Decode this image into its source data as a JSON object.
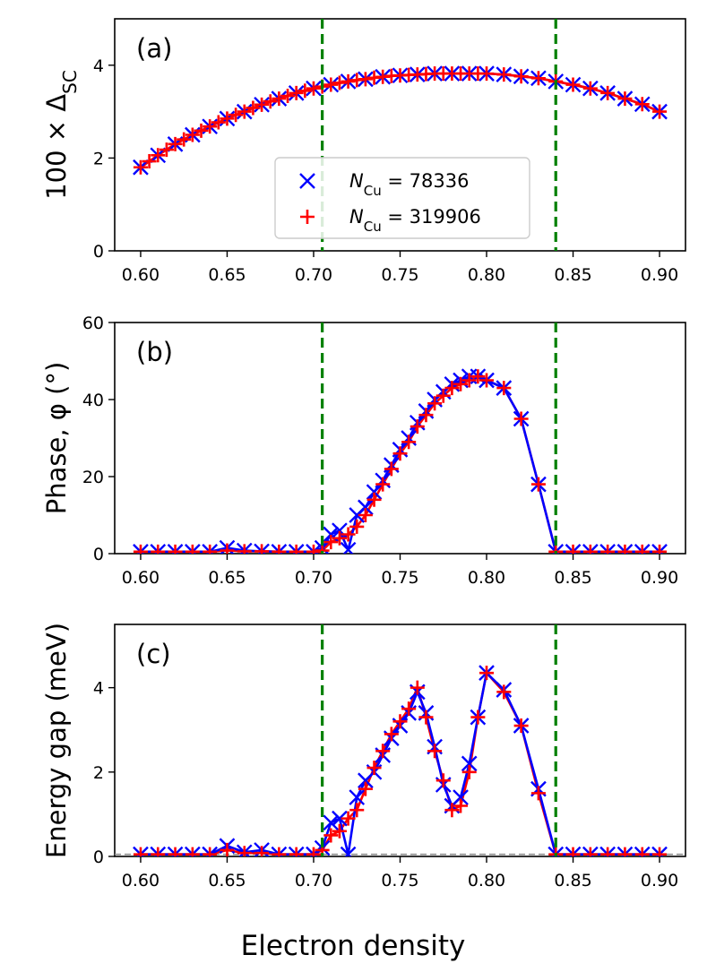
{
  "figure": {
    "xlabel": "Electron density",
    "colors": {
      "blue": "#0000ff",
      "red": "#ff0000",
      "green": "#008000",
      "gray": "#888888"
    }
  },
  "chart_data": [
    {
      "type": "line",
      "panel_label": "(a)",
      "ylabel_main": "100 × Δ",
      "ylabel_sub": "SC",
      "xlim": [
        0.585,
        0.915
      ],
      "ylim": [
        0,
        5
      ],
      "xticks": [
        "0.60",
        "0.65",
        "0.70",
        "0.75",
        "0.80",
        "0.85",
        "0.90"
      ],
      "yticks": [
        "0",
        "2",
        "4"
      ],
      "vlines": [
        0.705,
        0.84
      ],
      "legend": {
        "position": "center-bottom",
        "entries": [
          {
            "sym": "N",
            "sub": "Cu",
            "value": " = 78336"
          },
          {
            "sym": "N",
            "sub": "Cu",
            "value": " = 319906"
          }
        ]
      },
      "series": [
        {
          "name": "N_Cu = 78336",
          "marker": "x",
          "color": "#0000ff",
          "x": [
            0.6,
            0.61,
            0.62,
            0.63,
            0.64,
            0.65,
            0.66,
            0.67,
            0.68,
            0.69,
            0.7,
            0.71,
            0.72,
            0.73,
            0.74,
            0.75,
            0.76,
            0.77,
            0.78,
            0.79,
            0.8,
            0.81,
            0.82,
            0.83,
            0.84,
            0.85,
            0.86,
            0.87,
            0.88,
            0.89,
            0.9
          ],
          "y": [
            1.8,
            2.06,
            2.3,
            2.5,
            2.68,
            2.85,
            3.0,
            3.15,
            3.28,
            3.4,
            3.5,
            3.58,
            3.65,
            3.7,
            3.75,
            3.78,
            3.8,
            3.82,
            3.82,
            3.82,
            3.82,
            3.8,
            3.76,
            3.72,
            3.65,
            3.58,
            3.5,
            3.4,
            3.28,
            3.16,
            3.0
          ]
        },
        {
          "name": "N_Cu = 319906",
          "marker": "+",
          "color": "#ff0000",
          "x": [
            0.6,
            0.605,
            0.61,
            0.615,
            0.62,
            0.625,
            0.63,
            0.635,
            0.64,
            0.645,
            0.65,
            0.655,
            0.66,
            0.665,
            0.67,
            0.675,
            0.68,
            0.685,
            0.69,
            0.695,
            0.7,
            0.705,
            0.71,
            0.715,
            0.72,
            0.725,
            0.73,
            0.735,
            0.74,
            0.745,
            0.75,
            0.755,
            0.76,
            0.765,
            0.77,
            0.775,
            0.78,
            0.785,
            0.79,
            0.795,
            0.8,
            0.81,
            0.82,
            0.83,
            0.84,
            0.85,
            0.86,
            0.87,
            0.88,
            0.89,
            0.9
          ],
          "y": [
            1.8,
            1.93,
            2.06,
            2.18,
            2.3,
            2.4,
            2.5,
            2.59,
            2.68,
            2.77,
            2.85,
            2.93,
            3.0,
            3.08,
            3.15,
            3.22,
            3.28,
            3.34,
            3.4,
            3.45,
            3.5,
            3.54,
            3.58,
            3.62,
            3.65,
            3.68,
            3.7,
            3.73,
            3.75,
            3.77,
            3.78,
            3.79,
            3.8,
            3.81,
            3.82,
            3.82,
            3.82,
            3.82,
            3.82,
            3.82,
            3.82,
            3.8,
            3.76,
            3.72,
            3.65,
            3.58,
            3.5,
            3.4,
            3.28,
            3.16,
            3.0
          ]
        }
      ]
    },
    {
      "type": "line",
      "panel_label": "(b)",
      "ylabel_main": "Phase, φ (°)",
      "xlim": [
        0.585,
        0.915
      ],
      "ylim": [
        0,
        60
      ],
      "xticks": [
        "0.60",
        "0.65",
        "0.70",
        "0.75",
        "0.80",
        "0.85",
        "0.90"
      ],
      "yticks": [
        "0",
        "20",
        "40",
        "60"
      ],
      "vlines": [
        0.705,
        0.84
      ],
      "series": [
        {
          "name": "N_Cu = 78336",
          "marker": "x",
          "color": "#0000ff",
          "x": [
            0.6,
            0.61,
            0.62,
            0.63,
            0.64,
            0.65,
            0.66,
            0.67,
            0.68,
            0.69,
            0.7,
            0.705,
            0.71,
            0.715,
            0.72,
            0.725,
            0.73,
            0.735,
            0.74,
            0.745,
            0.75,
            0.755,
            0.76,
            0.765,
            0.77,
            0.775,
            0.78,
            0.785,
            0.79,
            0.795,
            0.8,
            0.81,
            0.82,
            0.83,
            0.84,
            0.85,
            0.86,
            0.87,
            0.88,
            0.89,
            0.9
          ],
          "y": [
            0.5,
            0.5,
            0.5,
            0.5,
            0.5,
            1.5,
            0.8,
            0.6,
            0.5,
            0.5,
            0.5,
            1.5,
            5,
            6,
            1,
            10,
            12,
            16,
            19,
            23,
            27,
            30,
            34,
            37,
            40,
            42,
            44,
            45,
            46,
            46,
            45,
            43,
            35,
            18,
            0.5,
            0.5,
            0.5,
            0.5,
            0.5,
            0.5,
            0.5
          ]
        },
        {
          "name": "N_Cu = 319906",
          "marker": "+",
          "color": "#ff0000",
          "x": [
            0.6,
            0.61,
            0.62,
            0.63,
            0.64,
            0.65,
            0.66,
            0.67,
            0.68,
            0.69,
            0.7,
            0.705,
            0.71,
            0.715,
            0.72,
            0.725,
            0.73,
            0.735,
            0.74,
            0.745,
            0.75,
            0.755,
            0.76,
            0.765,
            0.77,
            0.775,
            0.78,
            0.785,
            0.79,
            0.795,
            0.8,
            0.81,
            0.82,
            0.83,
            0.84,
            0.85,
            0.86,
            0.87,
            0.88,
            0.89,
            0.9
          ],
          "y": [
            0.5,
            0.5,
            0.5,
            0.5,
            0.5,
            0.8,
            0.6,
            0.6,
            0.5,
            0.5,
            0.5,
            0.8,
            3,
            4,
            5,
            7,
            10,
            14,
            18,
            22,
            26,
            29,
            33,
            36,
            39,
            41,
            43,
            44,
            45,
            46,
            45,
            43,
            35,
            18,
            0.5,
            0.5,
            0.5,
            0.5,
            0.5,
            0.5,
            0.5
          ]
        }
      ]
    },
    {
      "type": "line",
      "panel_label": "(c)",
      "ylabel_main": "Energy gap (meV)",
      "xlim": [
        0.585,
        0.915
      ],
      "ylim": [
        0,
        5.5
      ],
      "xticks": [
        "0.60",
        "0.65",
        "0.70",
        "0.75",
        "0.80",
        "0.85",
        "0.90"
      ],
      "yticks": [
        "0",
        "2",
        "4"
      ],
      "vlines": [
        0.705,
        0.84
      ],
      "hline": 0.05,
      "series": [
        {
          "name": "N_Cu = 78336",
          "marker": "x",
          "color": "#0000ff",
          "x": [
            0.6,
            0.61,
            0.62,
            0.63,
            0.64,
            0.65,
            0.66,
            0.67,
            0.68,
            0.69,
            0.7,
            0.705,
            0.71,
            0.715,
            0.72,
            0.725,
            0.73,
            0.735,
            0.74,
            0.745,
            0.75,
            0.755,
            0.76,
            0.765,
            0.77,
            0.775,
            0.78,
            0.785,
            0.79,
            0.795,
            0.8,
            0.81,
            0.82,
            0.83,
            0.84,
            0.85,
            0.86,
            0.87,
            0.88,
            0.89,
            0.9
          ],
          "y": [
            0.05,
            0.05,
            0.05,
            0.05,
            0.05,
            0.25,
            0.1,
            0.15,
            0.05,
            0.05,
            0.05,
            0.2,
            0.8,
            0.9,
            0.05,
            1.4,
            1.8,
            2.0,
            2.4,
            2.8,
            3.1,
            3.4,
            3.9,
            3.4,
            2.6,
            1.7,
            1.2,
            1.4,
            2.2,
            3.3,
            4.35,
            3.95,
            3.1,
            1.6,
            0.05,
            0.05,
            0.05,
            0.05,
            0.05,
            0.05,
            0.05
          ]
        },
        {
          "name": "N_Cu = 319906",
          "marker": "+",
          "color": "#ff0000",
          "x": [
            0.6,
            0.61,
            0.62,
            0.63,
            0.64,
            0.65,
            0.66,
            0.67,
            0.68,
            0.69,
            0.7,
            0.705,
            0.71,
            0.715,
            0.72,
            0.725,
            0.73,
            0.735,
            0.74,
            0.745,
            0.75,
            0.755,
            0.76,
            0.765,
            0.77,
            0.775,
            0.78,
            0.785,
            0.79,
            0.795,
            0.8,
            0.81,
            0.82,
            0.83,
            0.84,
            0.85,
            0.86,
            0.87,
            0.88,
            0.89,
            0.9
          ],
          "y": [
            0.05,
            0.05,
            0.05,
            0.05,
            0.05,
            0.15,
            0.08,
            0.08,
            0.05,
            0.05,
            0.05,
            0.15,
            0.5,
            0.6,
            0.9,
            1.1,
            1.6,
            2.1,
            2.5,
            2.9,
            3.2,
            3.5,
            4.0,
            3.3,
            2.5,
            1.8,
            1.1,
            1.2,
            2.0,
            3.3,
            4.35,
            3.9,
            3.1,
            1.5,
            0.05,
            0.05,
            0.05,
            0.05,
            0.05,
            0.05,
            0.05
          ]
        }
      ]
    }
  ]
}
